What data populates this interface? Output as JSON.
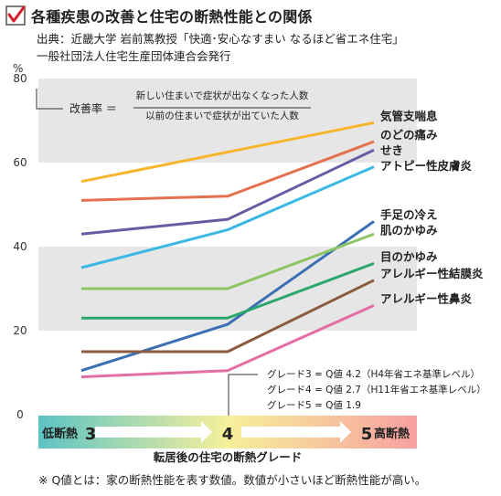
{
  "title": "各種疾患の改善と住宅の断熱性能との関係",
  "source": {
    "line1": "出典：近畿大学 岩前篤教授「快適･安心なすまい なるほど省エネ住宅」",
    "line2": "一般社団法人住宅生産団体連合会発行"
  },
  "formula": {
    "label": "改善率 ＝",
    "numerator": "新しい住まいで症状が出なくなった人数",
    "denominator": "以前の住まいで症状が出ていた人数"
  },
  "grade_notes": [
    "グレード3 = Q値 4.2（H4年省エネ基準レベル）",
    "グレード4 = Q値 2.7（H11年省エネ基準レベル）",
    "グレード5 = Q値 1.9"
  ],
  "axis_bar": {
    "low_label": "低断熱",
    "high_label": "高断熱",
    "colors": [
      "#5cc3c5",
      "#f6f09a",
      "#f7a0a0"
    ]
  },
  "footnote": "※ Q値とは：家の断熱性能を表す数値。数値が小さいほど断熱性能が高い。",
  "chart_data": {
    "type": "line",
    "title": "各種疾患の改善と住宅の断熱性能との関係",
    "xlabel": "転居後の住宅の断熱グレード",
    "ylabel": "%",
    "x": [
      3,
      4,
      5
    ],
    "x_ticks": [
      "3",
      "4",
      "5"
    ],
    "ylim": [
      0,
      80
    ],
    "y_ticks": [
      0,
      20,
      40,
      60,
      80
    ],
    "grid": "alternating gray bands",
    "series": [
      {
        "name": "気管支喘息",
        "color": "#f7b52c",
        "values": [
          55.5,
          62.5,
          69.5
        ]
      },
      {
        "name": "のどの痛み",
        "color": "#e4704f",
        "values": [
          51,
          52,
          65
        ]
      },
      {
        "name": "せき",
        "color": "#6a5aa4",
        "values": [
          43,
          46.5,
          63
        ]
      },
      {
        "name": "アトピー性皮膚炎",
        "color": "#3cb8e4",
        "values": [
          35,
          44,
          59
        ]
      },
      {
        "name": "手足の冷え",
        "color": "#3b6fb3",
        "values": [
          10.5,
          21.5,
          46
        ]
      },
      {
        "name": "肌のかゆみ",
        "color": "#8ec563",
        "values": [
          30,
          30,
          43
        ]
      },
      {
        "name": "目のかゆみ",
        "color": "#2ba86b",
        "values": [
          23,
          23,
          36
        ]
      },
      {
        "name": "アレルギー性結膜炎",
        "color": "#8c5b3f",
        "values": [
          15,
          15,
          32
        ]
      },
      {
        "name": "アレルギー性鼻炎",
        "color": "#e36da4",
        "values": [
          9,
          10.5,
          26
        ]
      }
    ]
  }
}
